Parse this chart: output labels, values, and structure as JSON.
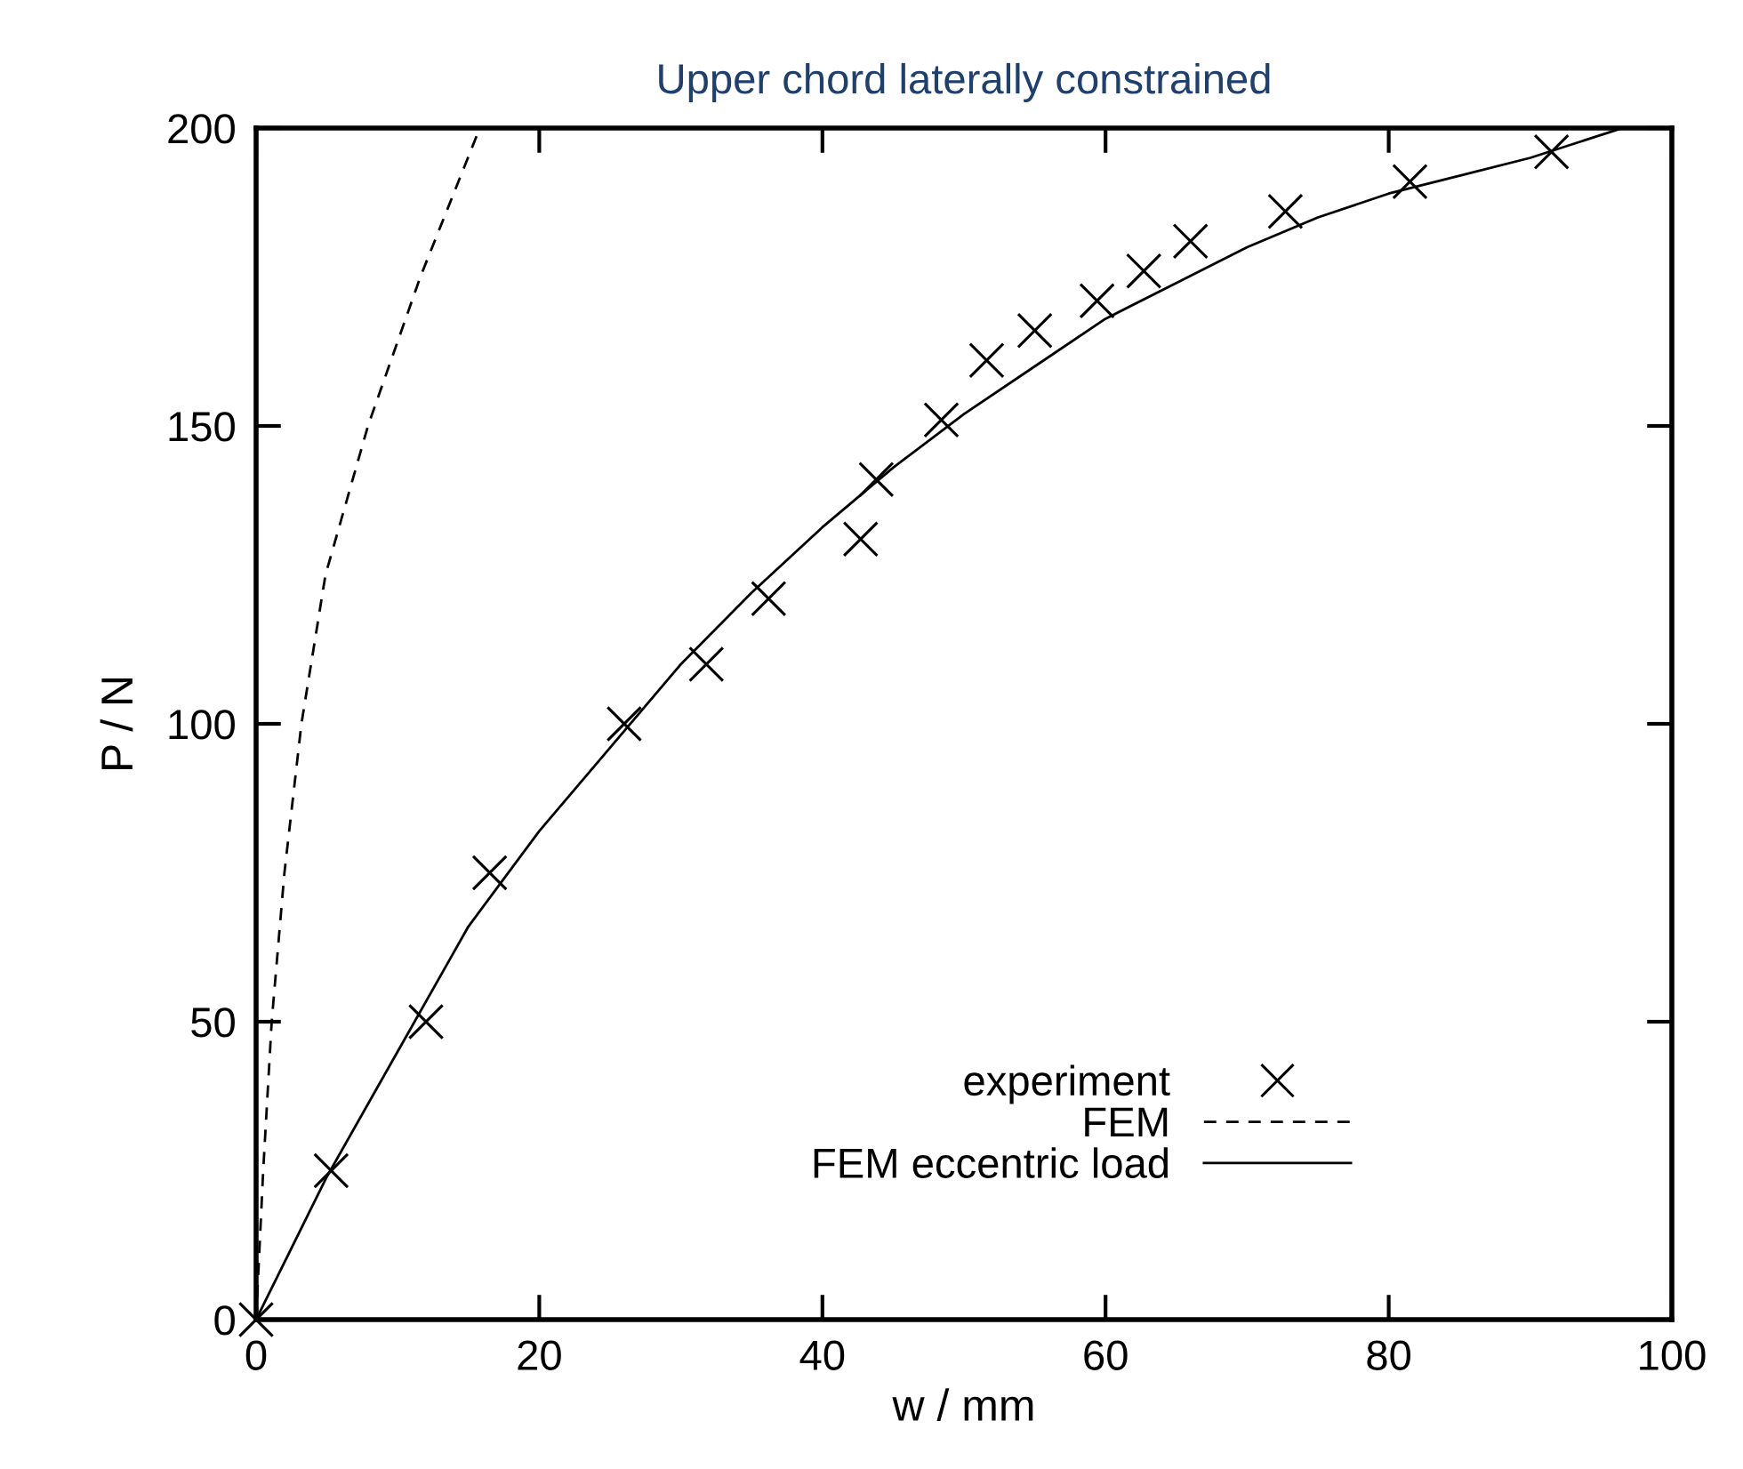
{
  "chart_data": {
    "type": "line",
    "title": "Upper chord laterally constrained",
    "xlabel": "w / mm",
    "ylabel": "P / N",
    "xlim": [
      0,
      100
    ],
    "ylim": [
      0,
      200
    ],
    "xticks": [
      0,
      20,
      40,
      60,
      80,
      100
    ],
    "yticks": [
      0,
      50,
      100,
      150,
      200
    ],
    "grid": false,
    "legend": "bottom right",
    "series": [
      {
        "name": "experiment",
        "type": "scatter",
        "marker": "cross",
        "color": "#000000",
        "x": [
          0,
          5.3,
          12,
          16.5,
          26,
          31.8,
          36.2,
          42.7,
          43.8,
          48.4,
          51.6,
          55,
          59.4,
          62.7,
          66,
          72.7,
          81.5,
          91.5
        ],
        "values": [
          0,
          25,
          50,
          75,
          100,
          110,
          121,
          131,
          141,
          151,
          161,
          166,
          171,
          176,
          181,
          186,
          191,
          196
        ]
      },
      {
        "name": "FEM",
        "line_style": "dashed",
        "color": "#000000",
        "x": [
          0,
          0.5,
          1.1,
          2,
          3.2,
          4.9,
          7.9,
          11.6,
          15.8
        ],
        "values": [
          0,
          25,
          50,
          75,
          100,
          125,
          150,
          175,
          200
        ]
      },
      {
        "name": "FEM eccentric load",
        "line_style": "solid",
        "color": "#000000",
        "x": [
          0,
          5,
          10,
          15,
          20,
          25,
          30,
          35,
          40,
          45,
          50,
          55,
          60,
          65,
          70,
          75,
          80,
          85,
          90,
          96.5
        ],
        "values": [
          0,
          24,
          45,
          66,
          82,
          96,
          110,
          122,
          133,
          143,
          152,
          160,
          168,
          174,
          180,
          185,
          189,
          192,
          195,
          200
        ]
      }
    ]
  }
}
